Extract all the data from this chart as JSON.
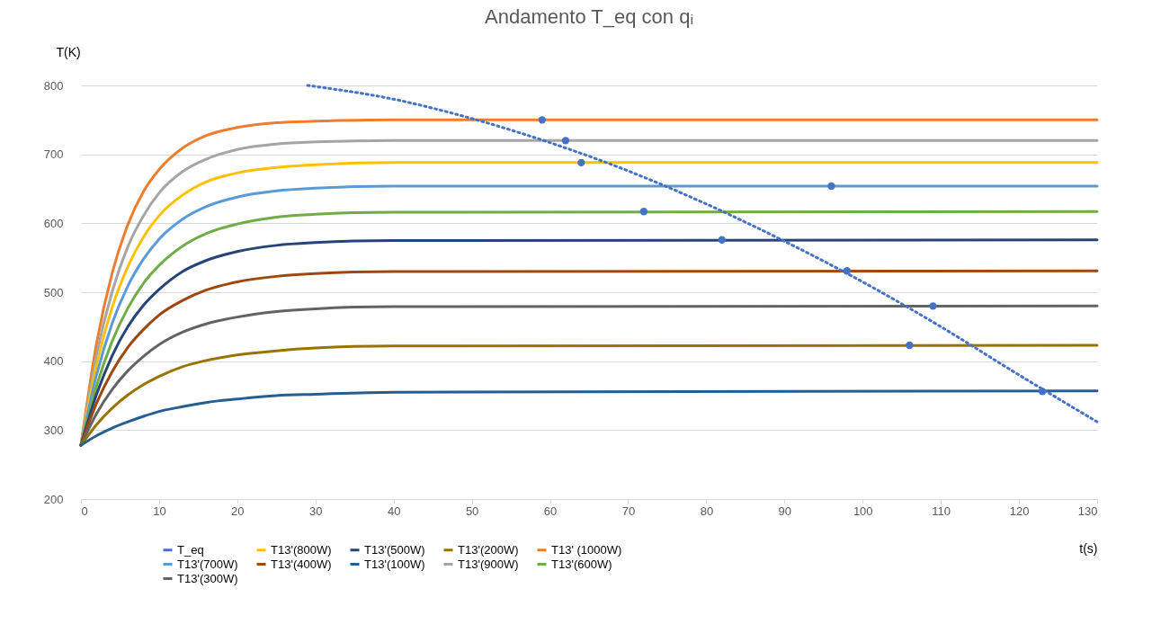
{
  "chart_data": {
    "type": "line",
    "title": "Andamento T_eq con qᵢ",
    "xlabel": "t(s)",
    "ylabel": "T(K)",
    "xlim": [
      0,
      130
    ],
    "xticks": [
      0,
      10,
      20,
      30,
      40,
      50,
      60,
      70,
      80,
      90,
      100,
      110,
      120,
      130
    ],
    "ylim": [
      200,
      800
    ],
    "yticks": [
      200,
      300,
      400,
      500,
      600,
      700,
      800
    ],
    "grid": "y",
    "legend": "bottom",
    "line_style": "solid",
    "x": [
      0,
      2,
      4,
      6,
      8,
      10,
      13,
      16,
      20,
      25,
      30,
      40,
      130
    ],
    "series": [
      {
        "name": "T_eq",
        "type": "scatter",
        "marker": "circle",
        "color": "#4472c4",
        "x": [
          59,
          62,
          64,
          96,
          72,
          82,
          98,
          109,
          106,
          123
        ],
        "values": [
          750,
          720,
          688,
          654,
          617,
          576,
          531,
          480,
          423,
          356
        ]
      },
      {
        "name": "T13' (1000W)",
        "color": "#ed7d31",
        "values": [
          278,
          426,
          528,
          598,
          646,
          678,
          709,
          727,
          739,
          746,
          748,
          750,
          750
        ]
      },
      {
        "name": "T13'(900W)",
        "color": "#a5a5a5",
        "values": [
          278,
          409,
          501,
          566,
          611,
          644,
          675,
          693,
          707,
          715,
          718,
          720,
          720
        ]
      },
      {
        "name": "T13'(800W)",
        "color": "#ffc000",
        "values": [
          278,
          394,
          478,
          537,
          580,
          611,
          641,
          660,
          673,
          681,
          685,
          688,
          688
        ]
      },
      {
        "name": "T13'(700W)",
        "color": "#5b9bd5",
        "values": [
          278,
          380,
          455,
          509,
          548,
          577,
          606,
          624,
          638,
          647,
          651,
          654,
          654
        ]
      },
      {
        "name": "T13'(600W)",
        "color": "#70ad47",
        "values": [
          278,
          364,
          429,
          477,
          513,
          539,
          567,
          585,
          599,
          609,
          613,
          616,
          617
        ]
      },
      {
        "name": "T13'(500W)",
        "color": "#264478",
        "values": [
          278,
          352,
          408,
          450,
          481,
          504,
          530,
          546,
          559,
          568,
          572,
          575,
          576
        ]
      },
      {
        "name": "T13'(400W)",
        "color": "#9e480e",
        "values": [
          278,
          339,
          385,
          420,
          446,
          467,
          488,
          503,
          515,
          523,
          527,
          530,
          531
        ]
      },
      {
        "name": "T13'(300W)",
        "color": "#636363",
        "values": [
          278,
          324,
          359,
          386,
          407,
          424,
          442,
          454,
          464,
          472,
          476,
          479,
          480
        ]
      },
      {
        "name": "T13'(200W)",
        "color": "#997300",
        "values": [
          278,
          308,
          332,
          351,
          366,
          378,
          392,
          401,
          409,
          415,
          419,
          422,
          423
        ]
      },
      {
        "name": "T13'(100W)",
        "color": "#255e91",
        "values": [
          278,
          292,
          303,
          312,
          320,
          327,
          334,
          340,
          345,
          350,
          352,
          355,
          357
        ]
      },
      {
        "type": "line",
        "line_style": "dotted",
        "color": "#4472c4",
        "x": [
          29,
          40,
          50,
          60,
          70,
          80,
          90,
          100,
          110,
          120,
          130
        ],
        "values": [
          800,
          780,
          752,
          717,
          676,
          628,
          574,
          515,
          450,
          380,
          312
        ]
      }
    ]
  }
}
